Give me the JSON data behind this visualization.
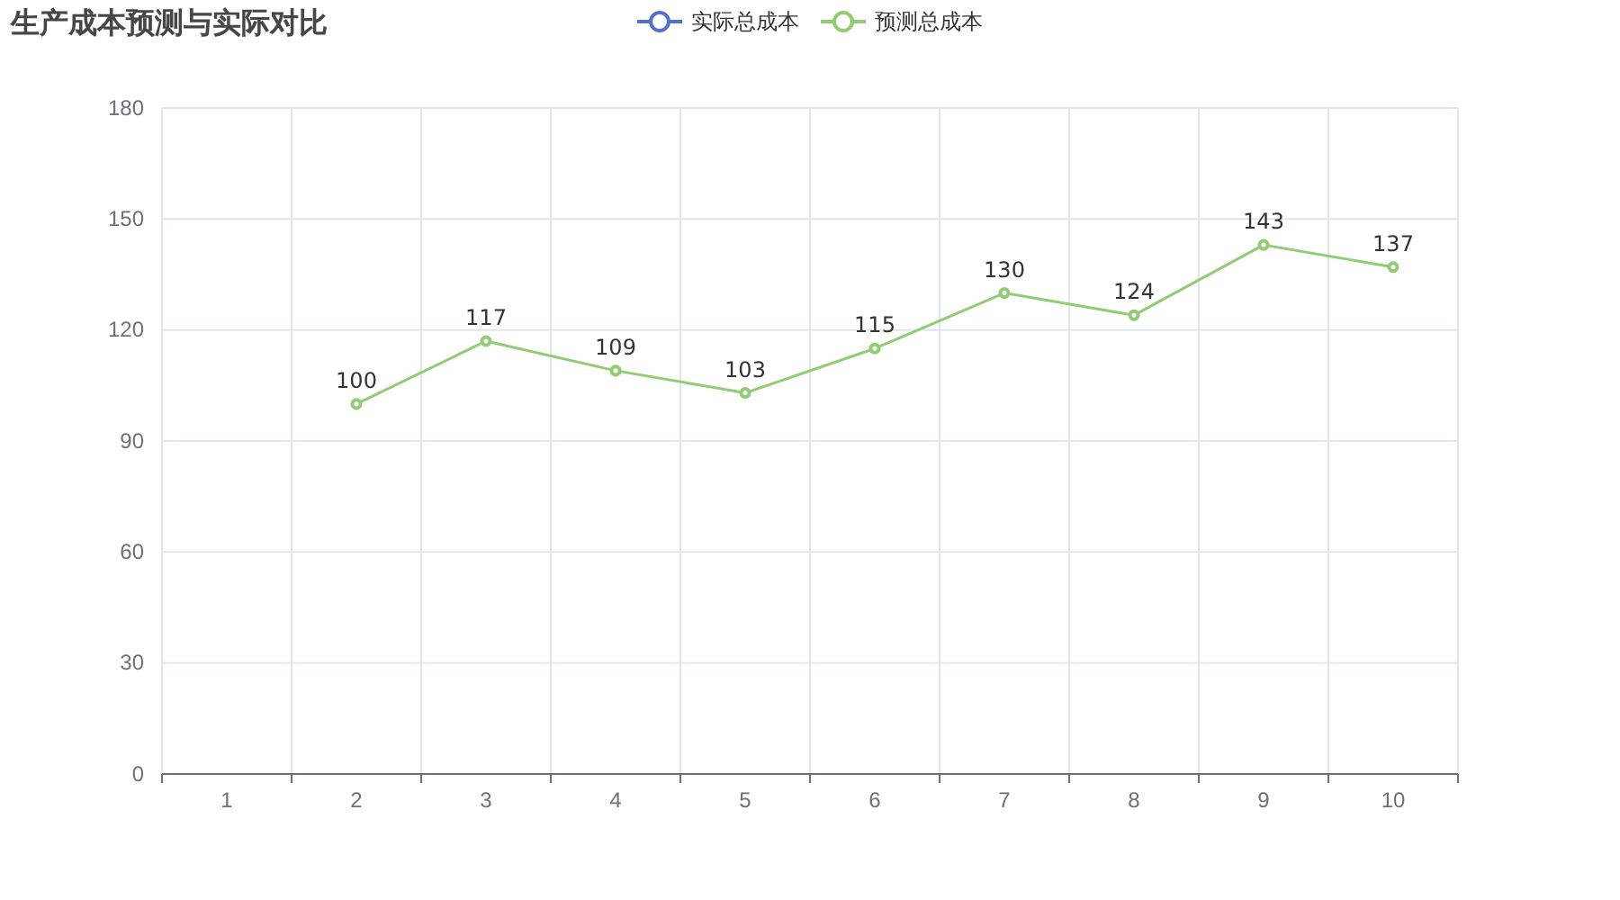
{
  "chart_data": {
    "type": "line",
    "title": "生产成本预测与实际对比",
    "categories": [
      "1",
      "2",
      "3",
      "4",
      "5",
      "6",
      "7",
      "8",
      "9",
      "10"
    ],
    "series": [
      {
        "name": "实际总成本",
        "color": "#5470c6",
        "values": [
          null,
          null,
          null,
          null,
          null,
          null,
          null,
          null,
          null,
          null
        ]
      },
      {
        "name": "预测总成本",
        "color": "#91cc75",
        "values": [
          null,
          100,
          117,
          109,
          103,
          115,
          130,
          124,
          143,
          137
        ]
      }
    ],
    "ylim": [
      0,
      180
    ],
    "yticks": [
      0,
      30,
      60,
      90,
      120,
      150,
      180
    ],
    "grid": true,
    "legend": "top",
    "marker": "circle",
    "line_style": "solid",
    "data_labels": true
  }
}
